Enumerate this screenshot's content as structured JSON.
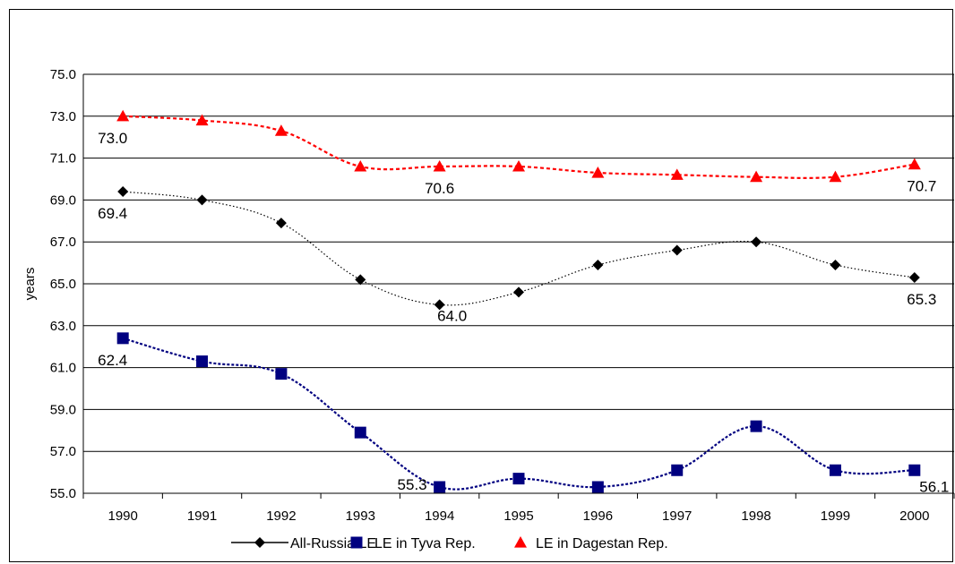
{
  "chart_data": {
    "type": "line",
    "title": "",
    "xlabel": "",
    "ylabel": "years",
    "categories": [
      "1990",
      "1991",
      "1992",
      "1993",
      "1994",
      "1995",
      "1996",
      "1997",
      "1998",
      "1999",
      "2000"
    ],
    "ylim": [
      55.0,
      75.0
    ],
    "yticks": [
      "55.0",
      "57.0",
      "59.0",
      "61.0",
      "63.0",
      "65.0",
      "67.0",
      "69.0",
      "71.0",
      "73.0",
      "75.0"
    ],
    "grid": "horizontal",
    "legend": "bottom",
    "series": [
      {
        "name": "All-Russia LE",
        "color": "#000000",
        "marker": "diamond",
        "values": [
          69.4,
          69.0,
          67.9,
          65.2,
          64.0,
          64.6,
          65.9,
          66.6,
          67.0,
          65.9,
          65.3
        ]
      },
      {
        "name": "LE in Tyva Rep.",
        "color": "#000080",
        "marker": "square",
        "values": [
          62.4,
          61.3,
          60.7,
          57.9,
          55.3,
          55.7,
          55.3,
          56.1,
          58.2,
          56.1,
          56.1
        ]
      },
      {
        "name": "LE in Dagestan Rep.",
        "color": "#ff0000",
        "marker": "triangle",
        "values": [
          73.0,
          72.8,
          72.3,
          70.6,
          70.6,
          70.6,
          70.3,
          70.2,
          70.1,
          70.1,
          70.7
        ]
      }
    ],
    "data_labels": [
      {
        "series": 0,
        "index": 0,
        "text": "69.4"
      },
      {
        "series": 0,
        "index": 4,
        "text": "64.0"
      },
      {
        "series": 0,
        "index": 10,
        "text": "65.3"
      },
      {
        "series": 1,
        "index": 0,
        "text": "62.4"
      },
      {
        "series": 1,
        "index": 4,
        "text": "55.3"
      },
      {
        "series": 1,
        "index": 10,
        "text": "56.1"
      },
      {
        "series": 2,
        "index": 0,
        "text": "73.0"
      },
      {
        "series": 2,
        "index": 4,
        "text": "70.6"
      },
      {
        "series": 2,
        "index": 10,
        "text": "70.7"
      }
    ]
  }
}
